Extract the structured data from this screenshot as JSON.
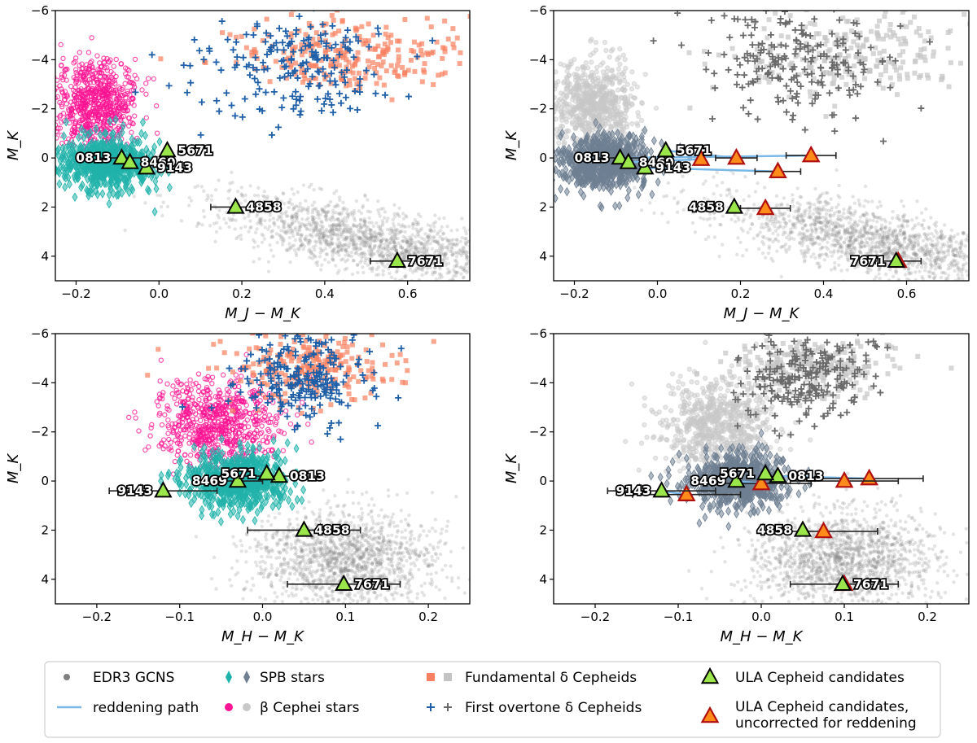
{
  "chart_data": [
    {
      "id": "top-left",
      "type": "scatter",
      "xlabel": "M_J − M_K",
      "ylabel": "M_K",
      "xlim": [
        -0.25,
        0.75
      ],
      "ylim": [
        5,
        -6
      ],
      "xticks": [
        -0.2,
        0.0,
        0.2,
        0.4,
        0.6
      ],
      "xtick_labels": [
        "−0.2",
        "0.0",
        "0.2",
        "0.4",
        "0.6"
      ],
      "yticks": [
        -6,
        -4,
        -2,
        0,
        2,
        4
      ],
      "ytick_labels": [
        "−6",
        "−4",
        "−2",
        "0",
        "2",
        "4"
      ],
      "style": "color",
      "clouds": [
        {
          "series": "gcns",
          "cx": 0.52,
          "cy": 3.4,
          "sx": 0.14,
          "sy": 0.9,
          "slope": 2.6,
          "n": 1600
        },
        {
          "series": "beta",
          "cx": -0.15,
          "cy": -2.2,
          "sx": 0.05,
          "sy": 0.9,
          "slope": 0,
          "n": 700
        },
        {
          "series": "spb",
          "cx": -0.13,
          "cy": 0.2,
          "sx": 0.055,
          "sy": 0.55,
          "slope": 0,
          "n": 650
        },
        {
          "series": "fund",
          "cx": 0.45,
          "cy": -4.2,
          "sx": 0.13,
          "sy": 0.8,
          "slope": 0,
          "n": 260
        },
        {
          "series": "fo",
          "cx": 0.33,
          "cy": -3.8,
          "sx": 0.11,
          "sy": 1.1,
          "slope": 0,
          "n": 200
        }
      ],
      "candidates": [
        {
          "name": "0813",
          "x": -0.09,
          "y": 0.0,
          "xerr": 0.06,
          "label_side": "left"
        },
        {
          "name": "8469",
          "x": -0.07,
          "y": 0.18,
          "xerr": 0.0,
          "label_side": "right"
        },
        {
          "name": "5671",
          "x": 0.02,
          "y": -0.3,
          "xerr": 0.0,
          "label_side": "right"
        },
        {
          "name": "9143",
          "x": -0.03,
          "y": 0.4,
          "xerr": 0.0,
          "label_side": "right"
        },
        {
          "name": "4858",
          "x": 0.185,
          "y": 2.0,
          "xerr": 0.06,
          "label_side": "right"
        },
        {
          "name": "7671",
          "x": 0.575,
          "y": 4.2,
          "xerr": 0.065,
          "label_side": "right"
        }
      ],
      "uncorrected": [],
      "reddening_paths": []
    },
    {
      "id": "top-right",
      "type": "scatter",
      "xlabel": "M_J − M_K",
      "ylabel": "M_K",
      "xlim": [
        -0.25,
        0.75
      ],
      "ylim": [
        5,
        -6
      ],
      "xticks": [
        -0.2,
        0.0,
        0.2,
        0.4,
        0.6
      ],
      "xtick_labels": [
        "−0.2",
        "0.0",
        "0.2",
        "0.4",
        "0.6"
      ],
      "yticks": [
        -6,
        -4,
        -2,
        0,
        2,
        4
      ],
      "ytick_labels": [
        "−6",
        "−4",
        "−2",
        "0",
        "2",
        "4"
      ],
      "style": "gray",
      "clouds": [
        {
          "series": "gcns",
          "cx": 0.52,
          "cy": 3.4,
          "sx": 0.14,
          "sy": 0.9,
          "slope": 2.6,
          "n": 1600
        },
        {
          "series": "beta",
          "cx": -0.15,
          "cy": -2.2,
          "sx": 0.05,
          "sy": 0.9,
          "slope": 0,
          "n": 700
        },
        {
          "series": "spb",
          "cx": -0.13,
          "cy": 0.2,
          "sx": 0.055,
          "sy": 0.55,
          "slope": 0,
          "n": 650
        },
        {
          "series": "fund",
          "cx": 0.45,
          "cy": -4.2,
          "sx": 0.13,
          "sy": 0.8,
          "slope": 0,
          "n": 260
        },
        {
          "series": "fo",
          "cx": 0.33,
          "cy": -3.8,
          "sx": 0.11,
          "sy": 1.1,
          "slope": 0,
          "n": 200
        }
      ],
      "candidates": [
        {
          "name": "0813",
          "x": -0.09,
          "y": 0.0,
          "xerr": 0.06,
          "label_side": "left"
        },
        {
          "name": "8469",
          "x": -0.07,
          "y": 0.18,
          "xerr": 0.0,
          "label_side": "right"
        },
        {
          "name": "5671",
          "x": 0.02,
          "y": -0.3,
          "xerr": 0.0,
          "label_side": "right"
        },
        {
          "name": "9143",
          "x": -0.03,
          "y": 0.4,
          "xerr": 0.0,
          "label_side": "right"
        },
        {
          "name": "4858",
          "x": 0.185,
          "y": 2.0,
          "xerr": 0.0,
          "label_side": "left"
        },
        {
          "name": "7671",
          "x": 0.575,
          "y": 4.2,
          "xerr": 0.0,
          "label_side": "left"
        }
      ],
      "uncorrected": [
        {
          "name": "0813",
          "x": 0.37,
          "y": -0.1,
          "xerr": 0.06
        },
        {
          "name": "8469",
          "x": 0.105,
          "y": 0.05,
          "xerr": 0.0
        },
        {
          "name": "5671",
          "x": 0.19,
          "y": 0.0,
          "xerr": 0.05
        },
        {
          "name": "9143",
          "x": 0.29,
          "y": 0.55,
          "xerr": 0.055
        },
        {
          "name": "4858",
          "x": 0.26,
          "y": 2.05,
          "xerr": 0.06
        },
        {
          "name": "7671",
          "x": 0.58,
          "y": 4.2,
          "xerr": 0.055
        }
      ],
      "reddening_paths": [
        {
          "x": [
            -0.09,
            0.37
          ],
          "y": [
            0.0,
            -0.1
          ]
        },
        {
          "x": [
            -0.07,
            0.105
          ],
          "y": [
            0.18,
            0.05
          ]
        },
        {
          "x": [
            0.02,
            0.19
          ],
          "y": [
            -0.3,
            0.0
          ]
        },
        {
          "x": [
            -0.03,
            0.29
          ],
          "y": [
            0.4,
            0.55
          ]
        }
      ]
    },
    {
      "id": "bottom-left",
      "type": "scatter",
      "xlabel": "M_H − M_K",
      "ylabel": "M_K",
      "xlim": [
        -0.25,
        0.25
      ],
      "ylim": [
        5,
        -6
      ],
      "xticks": [
        -0.2,
        -0.1,
        0.0,
        0.1,
        0.2
      ],
      "xtick_labels": [
        "−0.2",
        "−0.1",
        "0.0",
        "0.1",
        "0.2"
      ],
      "yticks": [
        -6,
        -4,
        -2,
        0,
        2,
        4
      ],
      "ytick_labels": [
        "−6",
        "−4",
        "−2",
        "0",
        "2",
        "4"
      ],
      "style": "color",
      "clouds": [
        {
          "series": "gcns",
          "cx": 0.1,
          "cy": 3.2,
          "sx": 0.055,
          "sy": 1.0,
          "slope": 0,
          "n": 1500
        },
        {
          "series": "beta",
          "cx": -0.055,
          "cy": -2.3,
          "sx": 0.035,
          "sy": 0.9,
          "slope": 0,
          "n": 700
        },
        {
          "series": "spb",
          "cx": -0.03,
          "cy": 0.0,
          "sx": 0.03,
          "sy": 0.55,
          "slope": 0,
          "n": 650
        },
        {
          "series": "fund",
          "cx": 0.06,
          "cy": -4.6,
          "sx": 0.05,
          "sy": 0.7,
          "slope": 0,
          "n": 260
        },
        {
          "series": "fo",
          "cx": 0.05,
          "cy": -4.2,
          "sx": 0.04,
          "sy": 0.9,
          "slope": 0,
          "n": 220
        }
      ],
      "candidates": [
        {
          "name": "0813",
          "x": 0.02,
          "y": -0.2,
          "xerr": 0.05,
          "label_side": "right"
        },
        {
          "name": "8469",
          "x": -0.03,
          "y": 0.0,
          "xerr": 0.03,
          "label_side": "left"
        },
        {
          "name": "5671",
          "x": 0.005,
          "y": -0.3,
          "xerr": 0.0,
          "label_side": "left"
        },
        {
          "name": "9143",
          "x": -0.12,
          "y": 0.4,
          "xerr": 0.065,
          "label_side": "left"
        },
        {
          "name": "4858",
          "x": 0.05,
          "y": 2.0,
          "xerr": 0.068,
          "label_side": "right"
        },
        {
          "name": "7671",
          "x": 0.098,
          "y": 4.2,
          "xerr": 0.068,
          "label_side": "right"
        }
      ],
      "uncorrected": [],
      "reddening_paths": []
    },
    {
      "id": "bottom-right",
      "type": "scatter",
      "xlabel": "M_H − M_K",
      "ylabel": "M_K",
      "xlim": [
        -0.25,
        0.25
      ],
      "ylim": [
        5,
        -6
      ],
      "xticks": [
        -0.2,
        -0.1,
        0.0,
        0.1,
        0.2
      ],
      "xtick_labels": [
        "−0.2",
        "−0.1",
        "0.0",
        "0.1",
        "0.2"
      ],
      "yticks": [
        -6,
        -4,
        -2,
        0,
        2,
        4
      ],
      "ytick_labels": [
        "−6",
        "−4",
        "−2",
        "0",
        "2",
        "4"
      ],
      "style": "gray",
      "clouds": [
        {
          "series": "gcns",
          "cx": 0.1,
          "cy": 3.2,
          "sx": 0.055,
          "sy": 1.0,
          "slope": 0,
          "n": 1500
        },
        {
          "series": "beta",
          "cx": -0.055,
          "cy": -2.3,
          "sx": 0.035,
          "sy": 0.9,
          "slope": 0,
          "n": 700
        },
        {
          "series": "spb",
          "cx": -0.03,
          "cy": 0.0,
          "sx": 0.03,
          "sy": 0.55,
          "slope": 0,
          "n": 650
        },
        {
          "series": "fund",
          "cx": 0.06,
          "cy": -4.6,
          "sx": 0.05,
          "sy": 0.7,
          "slope": 0,
          "n": 260
        },
        {
          "series": "fo",
          "cx": 0.05,
          "cy": -4.2,
          "sx": 0.04,
          "sy": 0.9,
          "slope": 0,
          "n": 220
        }
      ],
      "candidates": [
        {
          "name": "0813",
          "x": 0.02,
          "y": -0.2,
          "xerr": 0.0,
          "label_side": "right"
        },
        {
          "name": "8469",
          "x": -0.03,
          "y": 0.0,
          "xerr": 0.0,
          "label_side": "left"
        },
        {
          "name": "5671",
          "x": 0.005,
          "y": -0.3,
          "xerr": 0.0,
          "label_side": "left"
        },
        {
          "name": "9143",
          "x": -0.12,
          "y": 0.4,
          "xerr": 0.065,
          "label_side": "left"
        },
        {
          "name": "4858",
          "x": 0.05,
          "y": 2.0,
          "xerr": 0.0,
          "label_side": "left"
        },
        {
          "name": "7671",
          "x": 0.098,
          "y": 4.2,
          "xerr": 0.0,
          "label_side": "right"
        }
      ],
      "uncorrected": [
        {
          "name": "0813",
          "x": 0.13,
          "y": -0.1,
          "xerr": 0.065
        },
        {
          "name": "8469",
          "x": 0.0,
          "y": 0.1,
          "xerr": 0.06
        },
        {
          "name": "5671",
          "x": 0.1,
          "y": 0.0,
          "xerr": 0.065
        },
        {
          "name": "9143",
          "x": -0.09,
          "y": 0.55,
          "xerr": 0.065
        },
        {
          "name": "4858",
          "x": 0.075,
          "y": 2.05,
          "xerr": 0.065
        },
        {
          "name": "7671",
          "x": 0.1,
          "y": 4.2,
          "xerr": 0.065
        }
      ],
      "reddening_paths": [
        {
          "x": [
            -0.12,
            -0.09
          ],
          "y": [
            0.4,
            0.55
          ]
        },
        {
          "x": [
            -0.03,
            0.0
          ],
          "y": [
            0.0,
            0.1
          ]
        },
        {
          "x": [
            0.02,
            0.13
          ],
          "y": [
            -0.2,
            -0.1
          ]
        }
      ]
    }
  ],
  "legend": {
    "placement": "bottom",
    "entries": [
      {
        "key": "gcns",
        "label": "EDR3 GCNS"
      },
      {
        "key": "reddening",
        "label": "reddening path"
      },
      {
        "key": "spb",
        "label": "SPB stars"
      },
      {
        "key": "beta",
        "label": "β Cephei stars"
      },
      {
        "key": "fund",
        "label": "Fundamental δ Cepheids"
      },
      {
        "key": "fo",
        "label": "First overtone δ Cepheids"
      },
      {
        "key": "ula",
        "label": "ULA Cepheid candidates"
      },
      {
        "key": "ula_unc",
        "label_lines": [
          "ULA Cepheid candidates,",
          "uncorrected for reddening"
        ]
      }
    ]
  },
  "colors": {
    "gcns": "#7f7f7f",
    "spb": "#20b2aa",
    "beta": "#ff1493",
    "fund": "#fa8060",
    "fo": "#1f5fa8",
    "reddening": "#7ab8e8",
    "candidate_fill": "#9be64b",
    "uncorrected_fill": "#ff8c1a",
    "uncorrected_edge": "#b01010",
    "gray_spb": "#6e7f92",
    "gray_beta": "#c8c8c8",
    "gray_fund": "#c4c4c4",
    "gray_fo": "#6a6a6a"
  }
}
